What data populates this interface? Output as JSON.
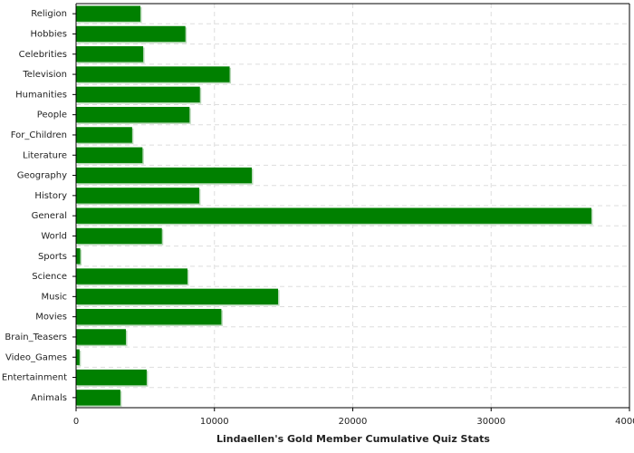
{
  "chart_data": {
    "type": "hbar",
    "x_label": "Lindaellen's Gold Member Cumulative Quiz Stats",
    "categories": [
      "Religion",
      "Hobbies",
      "Celebrities",
      "Television",
      "Humanities",
      "People",
      "For_Children",
      "Literature",
      "Geography",
      "History",
      "General",
      "World",
      "Sports",
      "Science",
      "Music",
      "Movies",
      "Brain_Teasers",
      "Video_Games",
      "Entertainment",
      "Animals"
    ],
    "values": [
      4650,
      7900,
      4850,
      11100,
      8950,
      8200,
      4050,
      4800,
      12700,
      8900,
      37250,
      6200,
      300,
      8050,
      14600,
      10500,
      3600,
      250,
      5100,
      3200
    ],
    "color": "#008000",
    "xlim": [
      0,
      40000
    ],
    "xticks": [
      0,
      10000,
      20000,
      30000,
      40000
    ],
    "grid": true
  }
}
